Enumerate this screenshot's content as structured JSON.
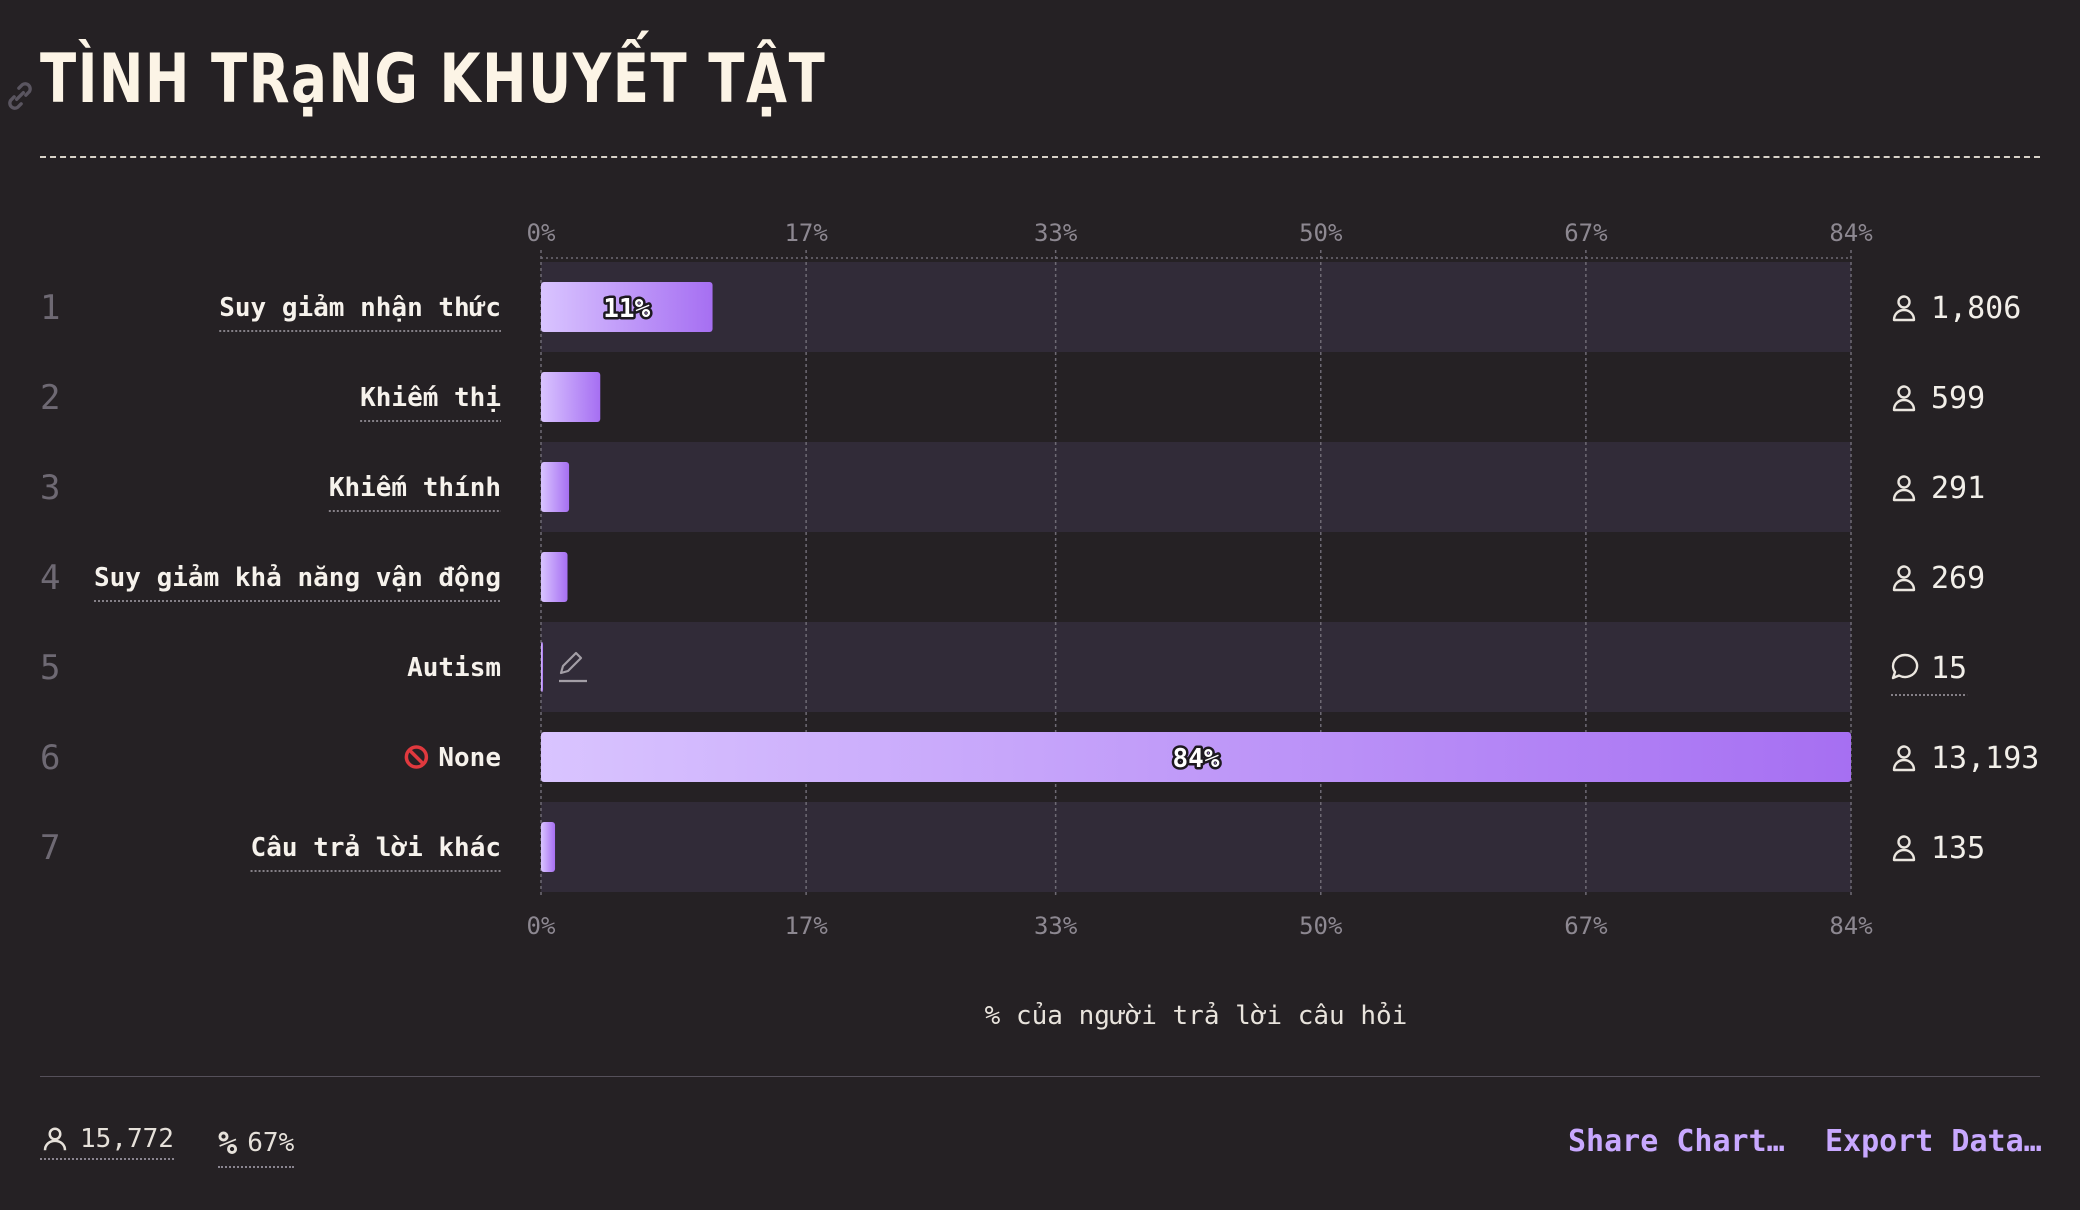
{
  "page": {
    "title": "TÌNH TRạNG KHUYẾT TẬT"
  },
  "chart_data": {
    "type": "bar",
    "orientation": "horizontal",
    "title": "TÌNH TRạNG KHUYẾT TẬT",
    "xlabel": "% của người trả lời câu hỏi",
    "xlim": [
      0,
      84
    ],
    "ticks": [
      "0%",
      "17%",
      "33%",
      "50%",
      "67%",
      "84%"
    ],
    "grid": true,
    "categories": [
      "Suy giảm nhận thức",
      "Khiếm thị",
      "Khiếm thính",
      "Suy giảm khả năng vận động",
      "Autism",
      "None",
      "Câu trả lời khác"
    ],
    "ranks": [
      "1",
      "2",
      "3",
      "4",
      "5",
      "6",
      "7"
    ],
    "values": [
      11,
      3.8,
      1.8,
      1.7,
      0.1,
      84,
      0.9
    ],
    "bar_labels": [
      "11%",
      "",
      "",
      "",
      "",
      "84%",
      ""
    ],
    "counts": [
      "1,806",
      "599",
      "291",
      "269",
      "15",
      "13,193",
      "135"
    ],
    "count_icons": [
      "user-icon",
      "user-icon",
      "user-icon",
      "user-icon",
      "comment-icon",
      "user-icon",
      "user-icon"
    ],
    "row_icons": [
      "",
      "",
      "",
      "",
      "edit-icon",
      "",
      ""
    ],
    "label_icons": [
      "",
      "",
      "",
      "",
      "",
      "prohibited-icon",
      ""
    ],
    "underlined": [
      true,
      true,
      true,
      true,
      false,
      false,
      true
    ],
    "colors": {
      "bar_start": "#d9c4ff",
      "bar_end": "#a66ff2",
      "row_band": "#312b38",
      "grid": "#6e6a74"
    }
  },
  "footer": {
    "respondents": "15,772",
    "percent": "67%",
    "share_label": "Share Chart…",
    "export_label": "Export Data…"
  }
}
